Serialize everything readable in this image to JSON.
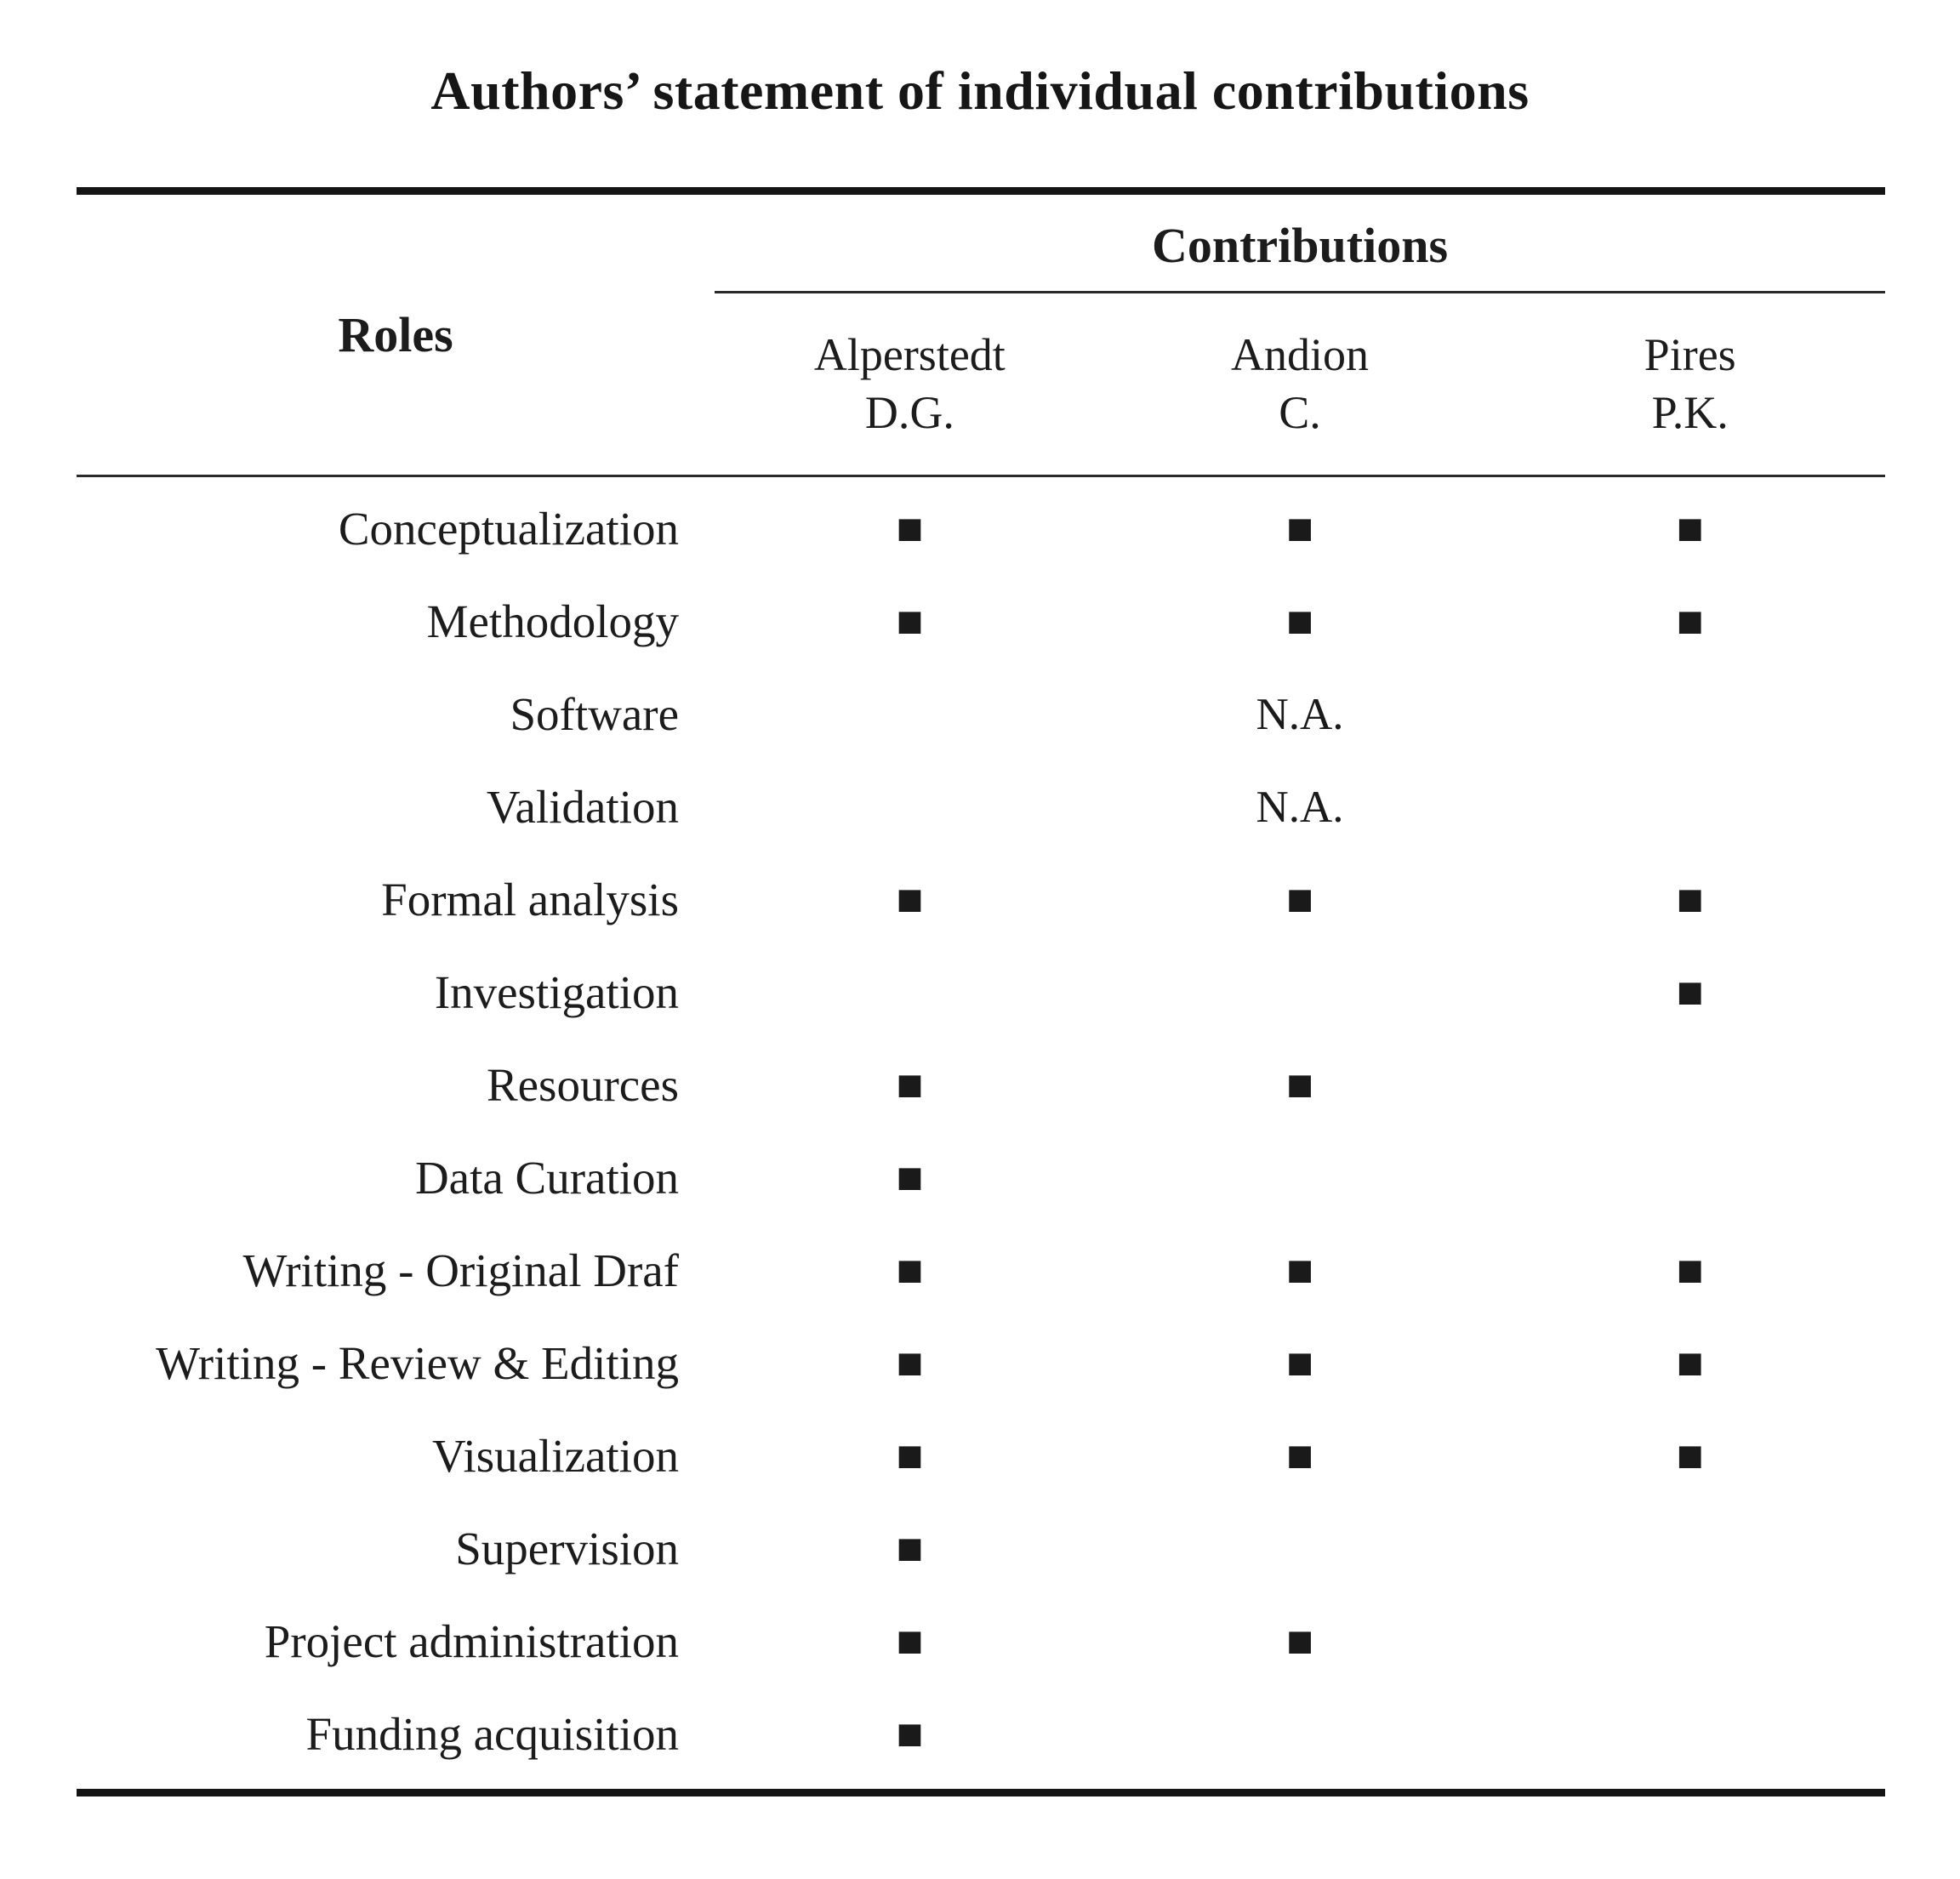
{
  "title": "Authors’ statement of individual contributions",
  "table": {
    "contributions_header": "Contributions",
    "roles_header": "Roles",
    "mark_glyph": "■",
    "authors": [
      {
        "name": "Alperstedt",
        "initials": "D.G."
      },
      {
        "name": "Andion",
        "initials": "C."
      },
      {
        "name": "Pires",
        "initials": "P.K."
      }
    ],
    "rows": [
      {
        "role": "Conceptualization",
        "cells": [
          "■",
          "■",
          "■"
        ]
      },
      {
        "role": "Methodology",
        "cells": [
          "■",
          "■",
          "■"
        ]
      },
      {
        "role": "Software",
        "cells": [
          "",
          "N.A.",
          ""
        ]
      },
      {
        "role": "Validation",
        "cells": [
          "",
          "N.A.",
          ""
        ]
      },
      {
        "role": "Formal analysis",
        "cells": [
          "■",
          "■",
          "■"
        ]
      },
      {
        "role": "Investigation",
        "cells": [
          "",
          "",
          "■"
        ]
      },
      {
        "role": "Resources",
        "cells": [
          "■",
          "■",
          ""
        ]
      },
      {
        "role": "Data Curation",
        "cells": [
          "■",
          "",
          ""
        ]
      },
      {
        "role": "Writing - Original Draf",
        "cells": [
          "■",
          "■",
          "■"
        ]
      },
      {
        "role": "Writing - Review & Editing",
        "cells": [
          "■",
          "■",
          "■"
        ]
      },
      {
        "role": "Visualization",
        "cells": [
          "■",
          "■",
          "■"
        ]
      },
      {
        "role": "Supervision",
        "cells": [
          "■",
          "",
          ""
        ]
      },
      {
        "role": "Project administration",
        "cells": [
          "■",
          "■",
          ""
        ]
      },
      {
        "role": "Funding acquisition",
        "cells": [
          "■",
          "",
          ""
        ]
      }
    ],
    "colors": {
      "text": "#1c1c1c",
      "rule": "#141414",
      "mark": "#1a1a1a"
    }
  }
}
